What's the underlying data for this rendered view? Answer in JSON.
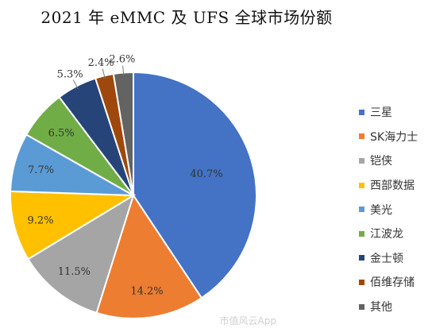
{
  "chart_data": {
    "type": "pie",
    "title": "2021 年 eMMC 及 UFS 全球市场份额",
    "slices": [
      {
        "name": "三星",
        "value": 40.7,
        "label": "40.7%",
        "color": "#4472C4"
      },
      {
        "name": "SK海力士",
        "value": 14.2,
        "label": "14.2%",
        "color": "#ED7D31"
      },
      {
        "name": "铠侠",
        "value": 11.5,
        "label": "11.5%",
        "color": "#A5A5A5"
      },
      {
        "name": "西部数据",
        "value": 9.2,
        "label": "9.2%",
        "color": "#FFC000"
      },
      {
        "name": "美光",
        "value": 7.7,
        "label": "7.7%",
        "color": "#5B9BD5"
      },
      {
        "name": "江波龙",
        "value": 6.5,
        "label": "6.5%",
        "color": "#70AD47"
      },
      {
        "name": "金士顿",
        "value": 5.3,
        "label": "5.3%",
        "color": "#264478"
      },
      {
        "name": "佰维存储",
        "value": 2.4,
        "label": "2.4%",
        "color": "#9E480E"
      },
      {
        "name": "其他",
        "value": 2.6,
        "label": "2.6%",
        "color": "#636363"
      }
    ],
    "legend_position": "right"
  },
  "watermark": "市值风云App"
}
